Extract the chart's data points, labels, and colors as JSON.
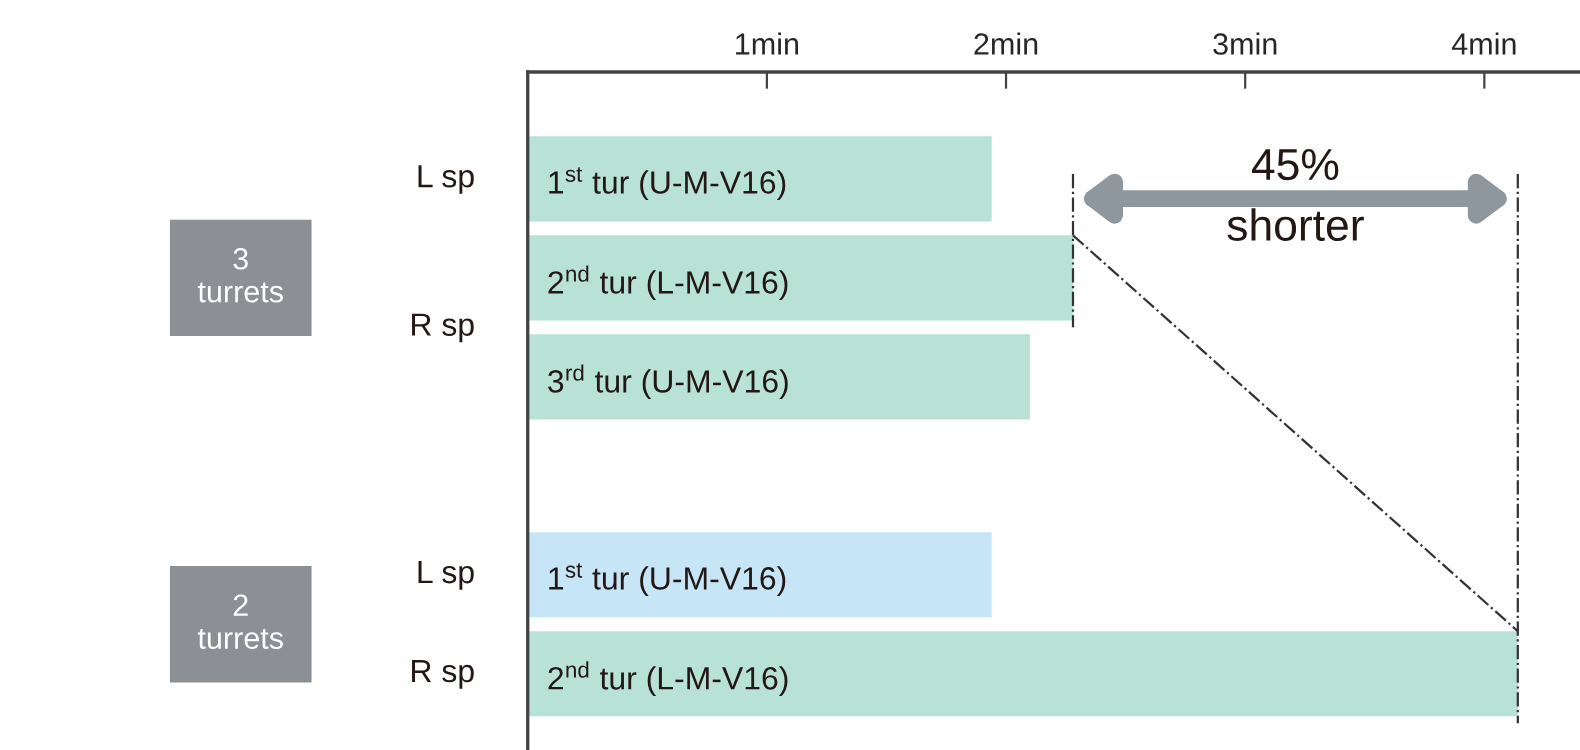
{
  "chart_data": {
    "type": "bar",
    "orientation": "horizontal",
    "categories": [
      "1$^{st}$ tur (U-M-V16)",
      "2$^{nd}$ tur (L-M-V16)",
      "3$^{rd}$ tur (U-M-V16)",
      null,
      "1$^{st}$ tur (U-M-V16)",
      "2$^{nd}$ tur (L-M-V16)"
    ],
    "values": [
      1.94,
      2.28,
      2.1,
      null,
      1.94,
      4.14
    ],
    "colors": [
      "#b9e2d6",
      "#b9e2d6",
      "#b9e2d6",
      null,
      "#c6e6f8",
      "#b9e2d6"
    ],
    "xlim": [
      0,
      4.4
    ],
    "xticks": [
      {
        "value": 1,
        "label": "1min"
      },
      {
        "value": 2,
        "label": "2min"
      },
      {
        "value": 3,
        "label": "3min"
      },
      {
        "value": 4,
        "label": "4min"
      }
    ],
    "tick_labels": "x",
    "grid": false,
    "ref_lines": [
      {
        "axis": "x",
        "value": 2.28,
        "color": "#333333"
      },
      {
        "axis": "x",
        "value": 4.14,
        "color": "#333333"
      }
    ],
    "annotations": [
      "L sp",
      "R sp",
      "L sp",
      "R sp",
      "3\nturrets",
      "2\nturrets",
      "45%\nshorter"
    ]
  }
}
